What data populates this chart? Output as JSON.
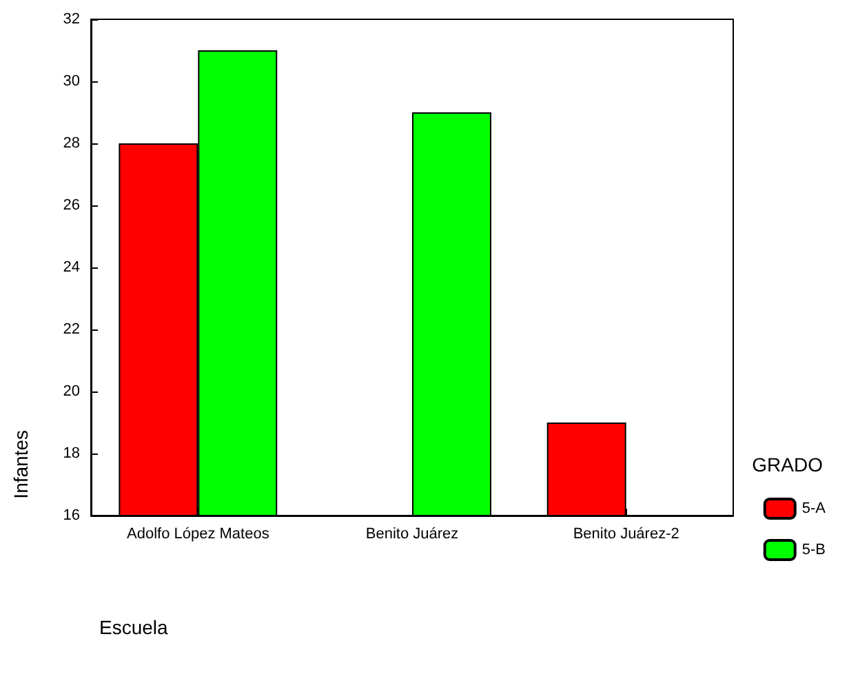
{
  "chart_data": {
    "type": "bar",
    "xlabel": "Escuela",
    "ylabel": "Infantes",
    "legend_title": "GRADO",
    "categories": [
      "Adolfo López Mateos",
      "Benito Juárez",
      "Benito Juárez-2"
    ],
    "series": [
      {
        "name": "5-A",
        "color": "#ff0000",
        "values": [
          28,
          null,
          19
        ]
      },
      {
        "name": "5-B",
        "color": "#00ff00",
        "values": [
          31,
          29,
          null
        ]
      }
    ],
    "ylim": [
      16,
      32
    ],
    "yticks": [
      16,
      18,
      20,
      22,
      24,
      26,
      28,
      30,
      32
    ],
    "grid": false,
    "legend": "right"
  }
}
